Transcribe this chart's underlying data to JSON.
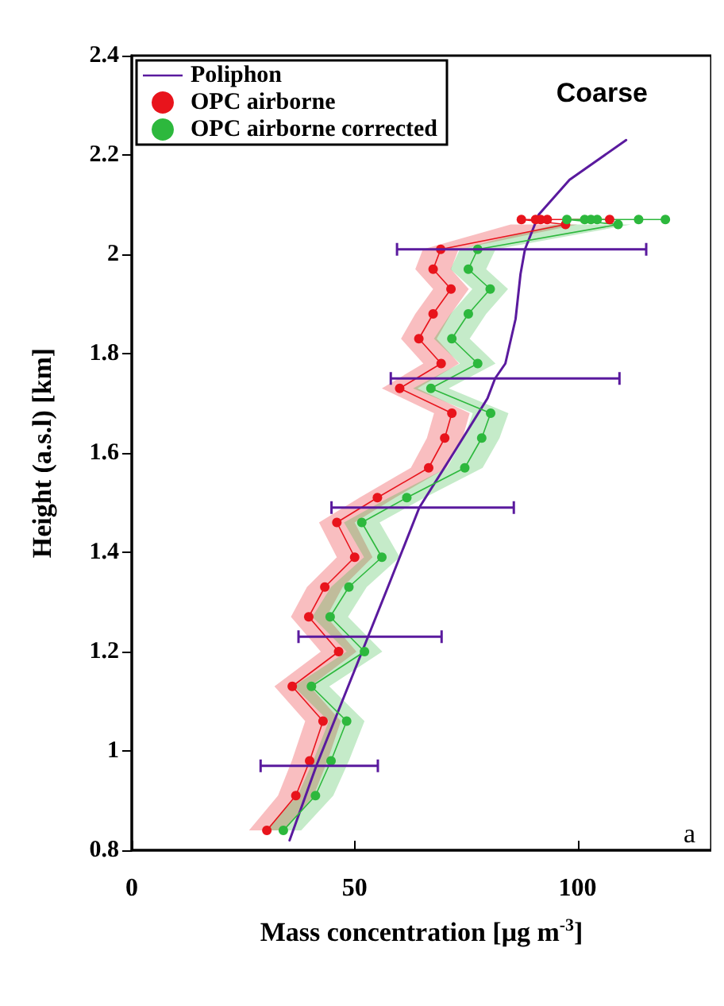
{
  "chart_data": {
    "type": "line",
    "orientation": "horizontal",
    "xlabel": "Mass concentration [μg m$^{-3}$]",
    "ylabel": "Height (a.s.l) [km]",
    "xlim": [
      0,
      130
    ],
    "xticks": [
      0,
      50,
      100
    ],
    "ylim": [
      0.8,
      2.4
    ],
    "yticks": [
      0.8,
      1,
      1.2,
      1.4,
      1.6,
      1.8,
      2,
      2.2,
      2.4
    ],
    "legend": "top left",
    "grid": false,
    "marker": "circle",
    "line_style": "solid",
    "annotations": [
      "Coarse",
      "a"
    ],
    "series": [
      {
        "name": "Poliphon",
        "color": "#5a1a9e",
        "marker": "none",
        "x": [
          0.82,
          0.97,
          1.23,
          1.34,
          1.49,
          1.61,
          1.71,
          1.75,
          1.78,
          1.87,
          1.96,
          2.01,
          2.08,
          2.15,
          2.23
        ],
        "values": [
          35.4,
          41.4,
          53.0,
          57.9,
          64.5,
          72.9,
          79.8,
          81.5,
          83.8,
          86.1,
          87.2,
          88.2,
          91.3,
          98.2,
          110.9
        ],
        "errors": [
          null,
          [
            28.9,
            55.2
          ],
          [
            37.4,
            69.5
          ],
          null,
          [
            44.8,
            85.7
          ],
          null,
          null,
          [
            58.1,
            109.4
          ],
          null,
          null,
          null,
          [
            59.5,
            115.4
          ],
          null,
          null,
          null
        ]
      },
      {
        "name": "OPC airborne",
        "color": "#e8141c",
        "x": [
          0.84,
          0.91,
          0.98,
          1.06,
          1.13,
          1.2,
          1.27,
          1.33,
          1.39,
          1.46,
          1.51,
          1.57,
          1.63,
          1.68,
          1.73,
          1.78,
          1.83,
          1.88,
          1.93,
          1.97,
          2.01,
          2.06,
          2.07,
          2.07,
          2.07,
          2.07,
          2.07
        ],
        "values": [
          30.3,
          36.8,
          39.9,
          42.9,
          36.0,
          46.4,
          39.7,
          43.3,
          50.0,
          46.0,
          55.1,
          66.6,
          70.2,
          71.8,
          60.1,
          69.4,
          64.4,
          67.6,
          71.6,
          67.6,
          69.3,
          97.3,
          87.4,
          90.6,
          91.7,
          93.2,
          107.2
        ],
        "lower": [
          26.3,
          32.8,
          35.9,
          38.9,
          32.0,
          42.4,
          35.7,
          39.3,
          46.0,
          42.0,
          51.1,
          62.6,
          66.2,
          67.8,
          56.1,
          65.4,
          60.4,
          63.6,
          67.6,
          63.6,
          65.3,
          85,
          null,
          null,
          null,
          null,
          null
        ],
        "upper": [
          34.3,
          40.8,
          43.9,
          46.9,
          40.0,
          50.4,
          43.7,
          47.3,
          54.0,
          50.0,
          59.1,
          70.6,
          74.2,
          75.8,
          64.1,
          73.4,
          68.4,
          71.6,
          75.6,
          71.6,
          73.3,
          100,
          null,
          null,
          null,
          null,
          null
        ]
      },
      {
        "name": "OPC airborne corrected",
        "color": "#2db83d",
        "x": [
          0.84,
          0.91,
          0.98,
          1.06,
          1.13,
          1.2,
          1.27,
          1.33,
          1.39,
          1.46,
          1.51,
          1.57,
          1.63,
          1.68,
          1.73,
          1.78,
          1.83,
          1.88,
          1.93,
          1.97,
          2.01,
          2.06,
          2.07,
          2.07,
          2.07,
          2.07,
          2.07,
          2.07
        ],
        "values": [
          34.0,
          41.2,
          44.7,
          48.2,
          40.3,
          52.2,
          44.5,
          48.7,
          56.1,
          51.6,
          61.7,
          74.7,
          78.5,
          80.5,
          67.1,
          77.6,
          71.8,
          75.5,
          80.4,
          75.5,
          77.6,
          109.1,
          97.6,
          101.6,
          103.0,
          104.4,
          113.7,
          119.7
        ],
        "lower": [
          30.0,
          37.2,
          40.7,
          44.2,
          36.3,
          48.2,
          40.5,
          44.7,
          52.1,
          47.6,
          57.7,
          70.7,
          74.5,
          76.5,
          63.1,
          73.6,
          67.8,
          71.5,
          76.4,
          71.5,
          73.6,
          95,
          null,
          null,
          null,
          null,
          null,
          null
        ],
        "upper": [
          38.0,
          45.2,
          48.7,
          52.2,
          44.3,
          56.2,
          48.5,
          52.7,
          60.1,
          55.6,
          65.7,
          78.7,
          82.5,
          84.5,
          71.1,
          81.6,
          75.8,
          79.5,
          84.4,
          79.5,
          81.6,
          112,
          null,
          null,
          null,
          null,
          null,
          null
        ]
      }
    ]
  }
}
